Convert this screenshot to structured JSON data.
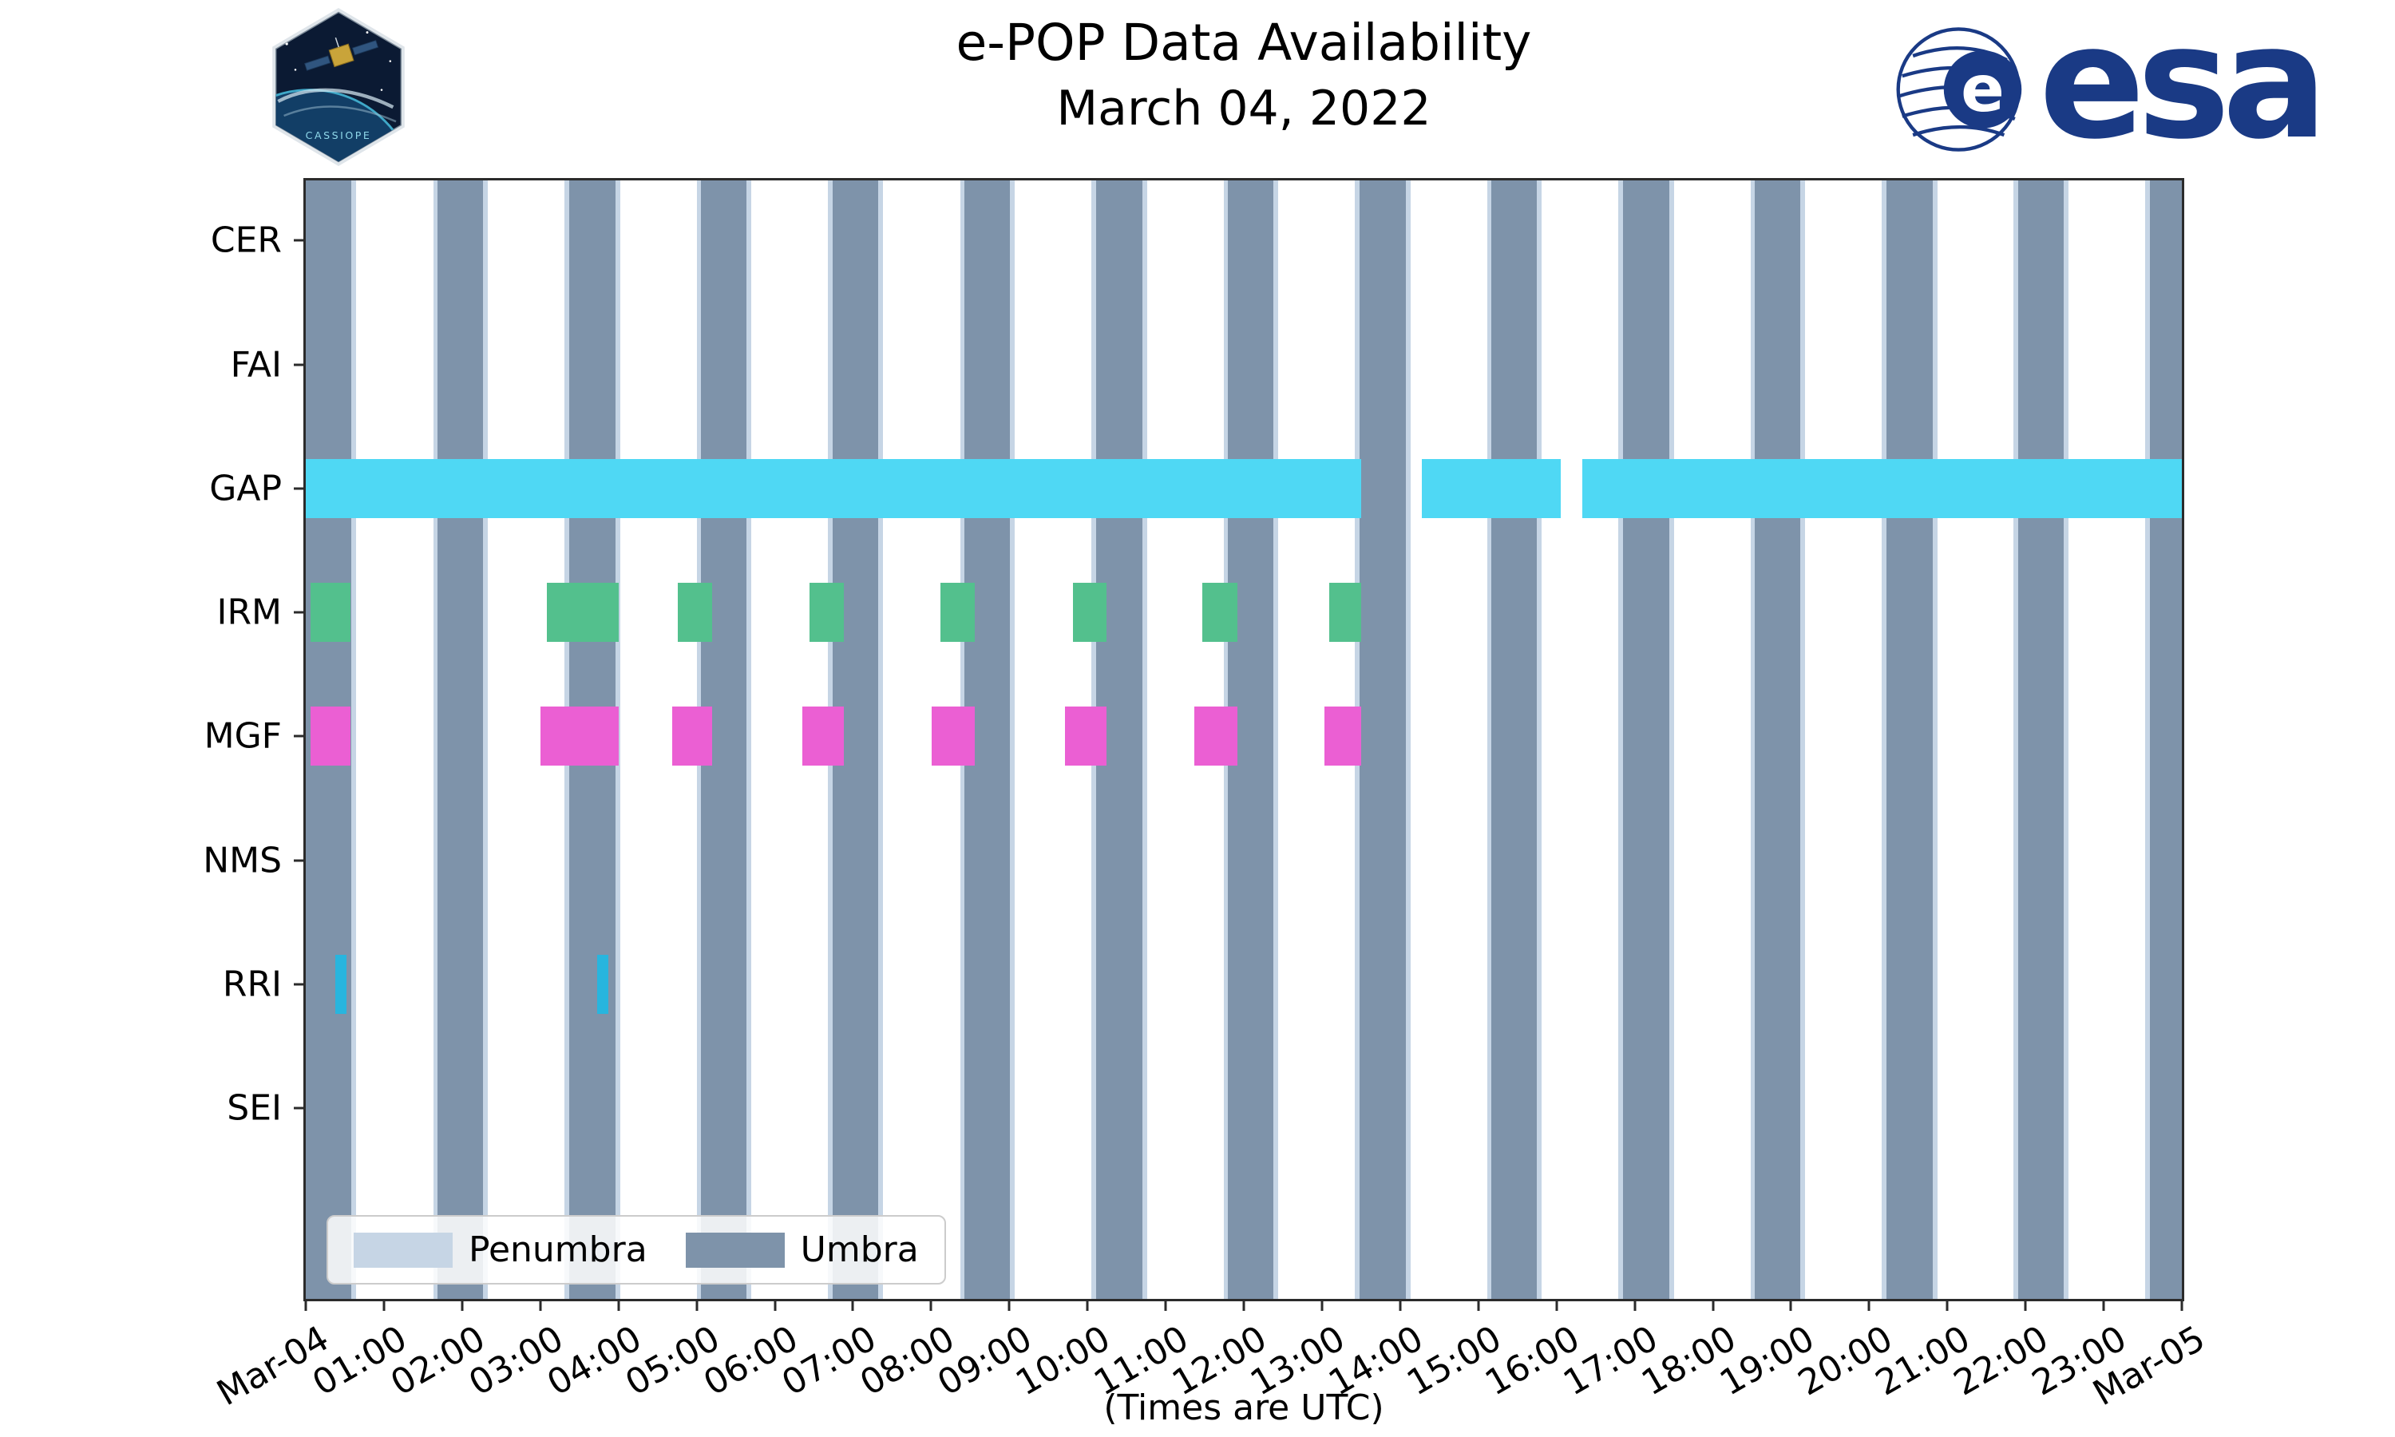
{
  "title": {
    "line1": "e-POP Data Availability",
    "line2": "March 04, 2022"
  },
  "branding": {
    "mission_patch_label": "CASSIOPE",
    "esa_wordmark": "esa",
    "esa_globe_letter": "e",
    "esa_blue": "#1a3a85"
  },
  "axis": {
    "x_label": "(Times are UTC)",
    "x_ticks": [
      "Mar-04",
      "01:00",
      "02:00",
      "03:00",
      "04:00",
      "05:00",
      "06:00",
      "07:00",
      "08:00",
      "09:00",
      "10:00",
      "11:00",
      "12:00",
      "13:00",
      "14:00",
      "15:00",
      "16:00",
      "17:00",
      "18:00",
      "19:00",
      "20:00",
      "21:00",
      "22:00",
      "23:00",
      "Mar-05"
    ],
    "y_ticks": [
      "CER",
      "FAI",
      "GAP",
      "IRM",
      "MGF",
      "NMS",
      "RRI",
      "SEI"
    ]
  },
  "legend": {
    "items": [
      {
        "label": "Penumbra",
        "color": "#c6d5e5"
      },
      {
        "label": "Umbra",
        "color": "#7e93aa"
      }
    ]
  },
  "chart_data": {
    "type": "availability-timeline",
    "title": "e-POP Data Availability",
    "date": "March 04, 2022",
    "x_range_hours": [
      0,
      24
    ],
    "rows": [
      "CER",
      "FAI",
      "GAP",
      "IRM",
      "MGF",
      "NMS",
      "RRI",
      "SEI"
    ],
    "series": [
      {
        "row": "GAP",
        "color": "#4fd8f4",
        "intervals_hours": [
          [
            0,
            13.5
          ],
          [
            14.28,
            16.05
          ],
          [
            16.33,
            24
          ]
        ]
      },
      {
        "row": "IRM",
        "color": "#53c08d",
        "intervals_hours": [
          [
            0.06,
            0.57
          ],
          [
            3.08,
            4.0
          ],
          [
            4.76,
            5.2
          ],
          [
            6.44,
            6.88
          ],
          [
            8.12,
            8.56
          ],
          [
            9.81,
            10.24
          ],
          [
            11.47,
            11.92
          ],
          [
            13.09,
            13.5
          ]
        ]
      },
      {
        "row": "MGF",
        "color": "#eb5fd3",
        "intervals_hours": [
          [
            0.06,
            0.57
          ],
          [
            3.0,
            4.0
          ],
          [
            4.69,
            5.2
          ],
          [
            6.35,
            6.88
          ],
          [
            8.01,
            8.56
          ],
          [
            9.71,
            10.24
          ],
          [
            11.37,
            11.92
          ],
          [
            13.03,
            13.5
          ]
        ]
      },
      {
        "row": "RRI",
        "color": "#28b5de",
        "intervals_hours": [
          [
            0.38,
            0.52
          ],
          [
            3.73,
            3.87
          ]
        ]
      },
      {
        "row": "CER",
        "color": null,
        "intervals_hours": []
      },
      {
        "row": "FAI",
        "color": null,
        "intervals_hours": []
      },
      {
        "row": "NMS",
        "color": null,
        "intervals_hours": []
      },
      {
        "row": "SEI",
        "color": null,
        "intervals_hours": []
      }
    ],
    "shading": {
      "umbra": {
        "label": "Umbra",
        "color": "#7e93aa",
        "intervals_hours": [
          [
            0,
            0.58
          ],
          [
            1.69,
            2.27
          ],
          [
            3.37,
            3.96
          ],
          [
            5.06,
            5.64
          ],
          [
            6.74,
            7.32
          ],
          [
            8.43,
            9.01
          ],
          [
            10.11,
            10.7
          ],
          [
            11.8,
            12.38
          ],
          [
            13.48,
            14.07
          ],
          [
            15.17,
            15.75
          ],
          [
            16.85,
            17.44
          ],
          [
            18.54,
            19.12
          ],
          [
            20.22,
            20.81
          ],
          [
            21.91,
            22.49
          ],
          [
            23.59,
            24
          ]
        ]
      },
      "penumbra": {
        "label": "Penumbra",
        "color": "#c6d5e5",
        "flank_hours": 0.06
      }
    }
  }
}
